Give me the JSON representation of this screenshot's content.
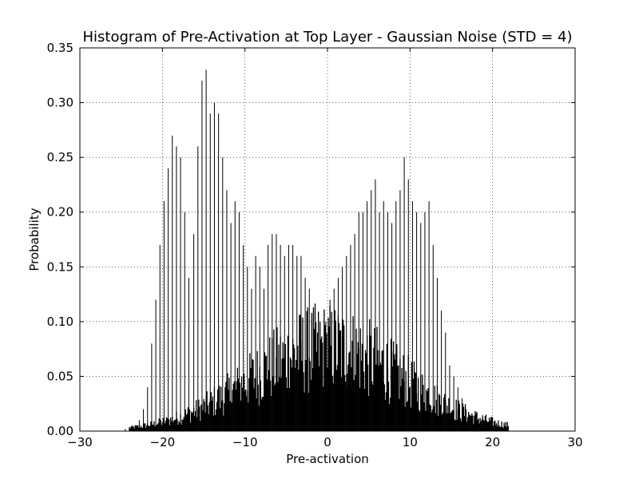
{
  "chart_data": {
    "type": "bar",
    "title": "Histogram of Pre-Activation at Top Layer - Gaussian Noise (STD = 4)",
    "xlabel": "Pre-activation",
    "ylabel": "Probability",
    "xlim": [
      -30,
      30
    ],
    "ylim": [
      0,
      0.35
    ],
    "xticks": [
      -30,
      -20,
      -10,
      0,
      10,
      20,
      30
    ],
    "xtick_labels": [
      "−30",
      "−20",
      "−10",
      "0",
      "10",
      "20",
      "30"
    ],
    "yticks": [
      0.0,
      0.05,
      0.1,
      0.15,
      0.2,
      0.25,
      0.3,
      0.35
    ],
    "ytick_labels": [
      "0.00",
      "0.05",
      "0.10",
      "0.15",
      "0.20",
      "0.25",
      "0.30",
      "0.35"
    ],
    "grid": true,
    "legend": "none",
    "bar_color": "#000000",
    "bar_edge_color": "#000000",
    "spikes": {
      "x": [
        -24.5,
        -23.8,
        -22.8,
        -22.3,
        -21.8,
        -21.3,
        -20.8,
        -20.3,
        -19.8,
        -19.3,
        -18.8,
        -18.3,
        -17.8,
        -17.3,
        -16.8,
        -16.2,
        -15.7,
        -15.2,
        -14.7,
        -14.2,
        -13.7,
        -13.2,
        -12.7,
        -12.2,
        -11.7,
        -11.2,
        -10.7,
        -10.2,
        -9.7,
        -9.2,
        -8.7,
        -8.2,
        -7.7,
        -7.2,
        -6.7,
        -6.2,
        -5.7,
        -5.2,
        -4.7,
        -4.2,
        -3.7,
        -3.2,
        -2.7,
        -2.2,
        -1.7,
        -1.2,
        -0.7,
        -0.2,
        0.3,
        0.8,
        1.3,
        1.8,
        2.3,
        2.8,
        3.3,
        3.8,
        4.3,
        4.8,
        5.3,
        5.8,
        6.3,
        6.8,
        7.3,
        7.8,
        8.3,
        8.8,
        9.3,
        9.8,
        10.3,
        10.8,
        11.3,
        11.8,
        12.3,
        12.8,
        13.3,
        13.8,
        14.3,
        14.8,
        15.3,
        15.8,
        16.3,
        16.8,
        17.3,
        17.8,
        18.3,
        18.8,
        19.3
      ],
      "y": [
        0.002,
        0.004,
        0.01,
        0.02,
        0.04,
        0.08,
        0.12,
        0.17,
        0.21,
        0.24,
        0.27,
        0.26,
        0.25,
        0.2,
        0.14,
        0.18,
        0.26,
        0.32,
        0.33,
        0.29,
        0.3,
        0.29,
        0.25,
        0.22,
        0.19,
        0.21,
        0.2,
        0.17,
        0.15,
        0.13,
        0.16,
        0.15,
        0.13,
        0.17,
        0.18,
        0.18,
        0.17,
        0.16,
        0.17,
        0.17,
        0.16,
        0.16,
        0.14,
        0.13,
        0.11,
        0.09,
        0.08,
        0.1,
        0.12,
        0.13,
        0.14,
        0.15,
        0.16,
        0.17,
        0.18,
        0.2,
        0.2,
        0.21,
        0.22,
        0.23,
        0.2,
        0.21,
        0.2,
        0.19,
        0.21,
        0.22,
        0.25,
        0.23,
        0.21,
        0.2,
        0.19,
        0.2,
        0.21,
        0.17,
        0.14,
        0.11,
        0.09,
        0.06,
        0.05,
        0.04,
        0.03,
        0.02,
        0.015,
        0.01,
        0.006,
        0.003,
        0.001
      ]
    },
    "fine_bars": {
      "note_free": true,
      "x_start": -24,
      "x_end": 22,
      "bins": 460,
      "envelope_center": 0,
      "envelope_peak": 0.095,
      "envelope_sigma": 9.5
    }
  }
}
